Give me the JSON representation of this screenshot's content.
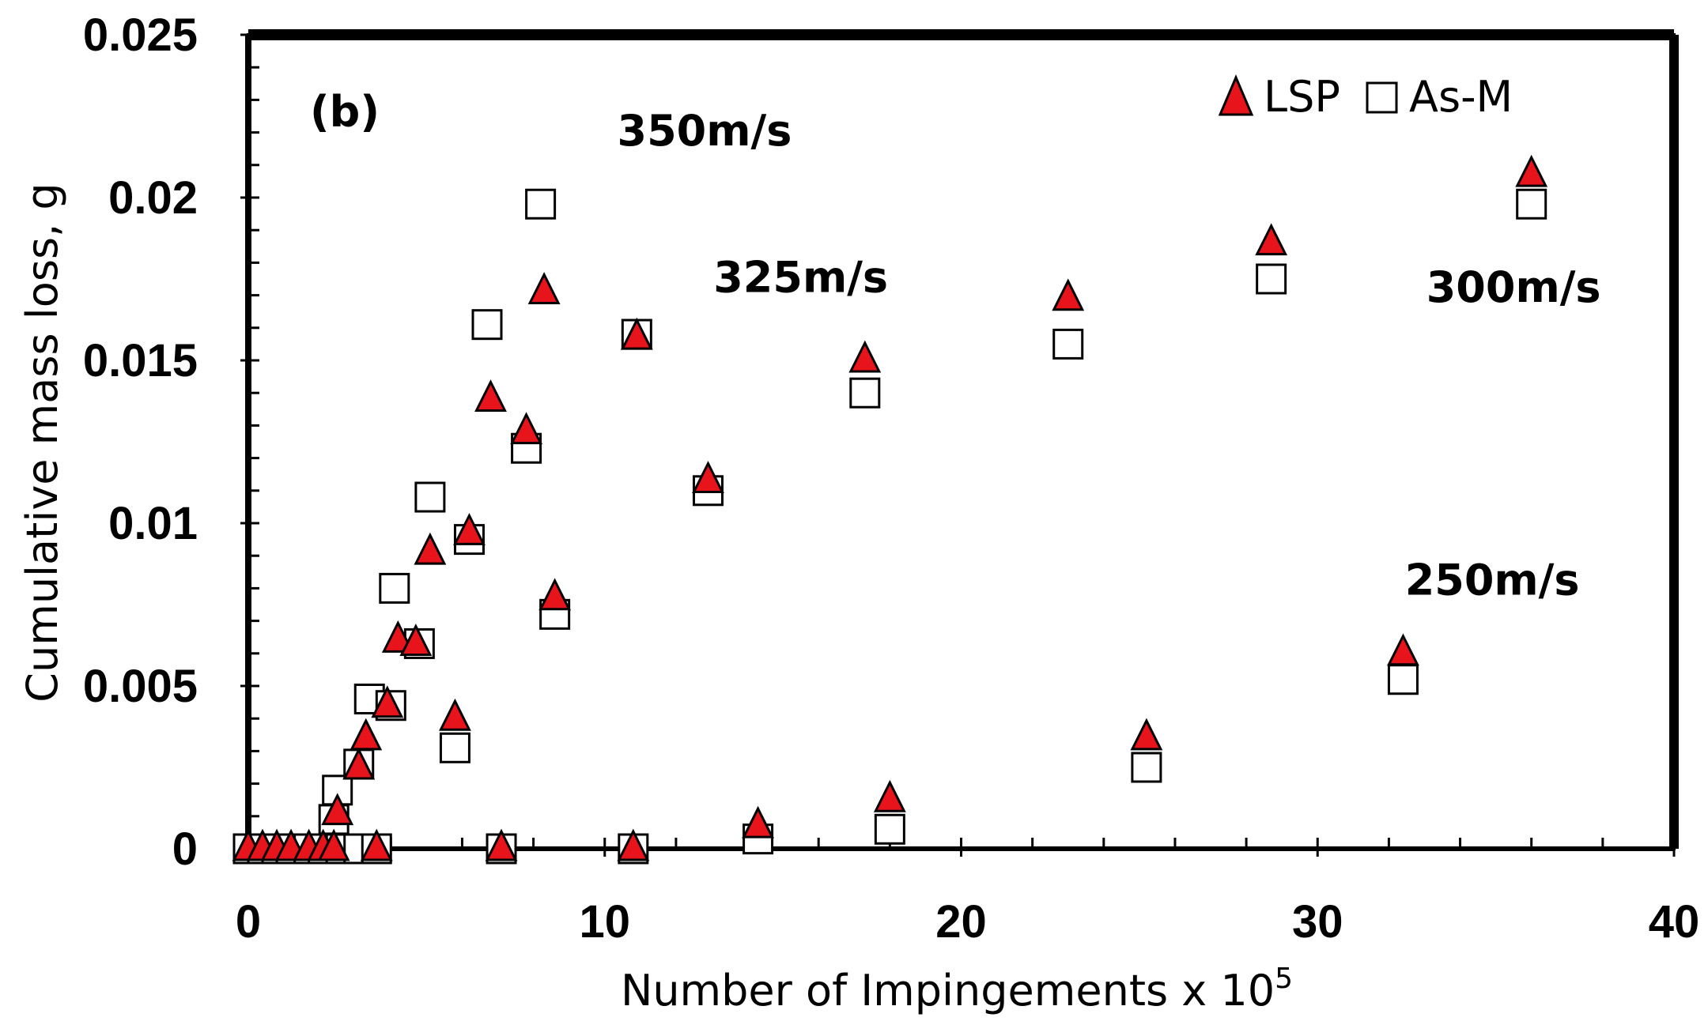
{
  "chart_data": {
    "type": "scatter",
    "panel_label": "(b)",
    "xlabel": "Number of Impingements x 10",
    "xlabel_superscript": "5",
    "ylabel": "Cumulative mass loss, g",
    "xlim": [
      0,
      40
    ],
    "ylim": [
      0,
      0.025
    ],
    "x_ticks": [
      0,
      10,
      20,
      30,
      40
    ],
    "x_tick_labels": [
      "0",
      "10",
      "20",
      "30",
      "40"
    ],
    "y_ticks": [
      0,
      0.005,
      0.01,
      0.015,
      0.02,
      0.025
    ],
    "y_tick_labels": [
      "0",
      "0.005",
      "0.01",
      "0.015",
      "0.02",
      "0.025"
    ],
    "grid": false,
    "legend_position": "top-right",
    "annotations": [
      {
        "text": "350m/s",
        "x": 12.8,
        "y": 0.0216
      },
      {
        "text": "325m/s",
        "x": 15.5,
        "y": 0.0171
      },
      {
        "text": "300m/s",
        "x": 35.5,
        "y": 0.0168
      },
      {
        "text": "250m/s",
        "x": 34.9,
        "y": 0.0078
      }
    ],
    "series": [
      {
        "name": "LSP",
        "marker": "triangle",
        "color": "#e8141b",
        "points": [
          [
            0,
            0
          ],
          [
            0.4,
            0
          ],
          [
            0.8,
            0
          ],
          [
            1.2,
            0
          ],
          [
            1.7,
            0
          ],
          [
            2.1,
            0
          ],
          [
            2.4,
            0
          ],
          [
            2.5,
            0.0011
          ],
          [
            3.1,
            0.0025
          ],
          [
            3.3,
            0.0034
          ],
          [
            3.6,
            0
          ],
          [
            3.9,
            0.0044
          ],
          [
            4.2,
            0.0064
          ],
          [
            4.7,
            0.0063
          ],
          [
            5.1,
            0.0091
          ],
          [
            5.8,
            0.004
          ],
          [
            6.2,
            0.0097
          ],
          [
            6.8,
            0.0138
          ],
          [
            7.1,
            0
          ],
          [
            7.8,
            0.0128
          ],
          [
            8.3,
            0.0171
          ],
          [
            8.6,
            0.0077
          ],
          [
            10.8,
            0
          ],
          [
            10.9,
            0.0157
          ],
          [
            12.9,
            0.0113
          ],
          [
            14.3,
            0.0007
          ],
          [
            17.3,
            0.015
          ],
          [
            18.0,
            0.0015
          ],
          [
            23.0,
            0.0169
          ],
          [
            25.2,
            0.0034
          ],
          [
            28.7,
            0.0186
          ],
          [
            32.4,
            0.006
          ],
          [
            36.0,
            0.0207
          ]
        ]
      },
      {
        "name": "As-M",
        "marker": "square",
        "color": "#ffffff",
        "points": [
          [
            0,
            0
          ],
          [
            0.4,
            0
          ],
          [
            0.8,
            0
          ],
          [
            1.2,
            0
          ],
          [
            1.7,
            0
          ],
          [
            2.1,
            0
          ],
          [
            2.4,
            0.0009
          ],
          [
            2.5,
            0.0018
          ],
          [
            2.6,
            0
          ],
          [
            3.1,
            0.0026
          ],
          [
            3.1,
            0
          ],
          [
            3.4,
            0.0046
          ],
          [
            3.6,
            0
          ],
          [
            4.0,
            0.0044
          ],
          [
            4.1,
            0.008
          ],
          [
            4.8,
            0.0063
          ],
          [
            5.1,
            0.0108
          ],
          [
            5.8,
            0.0031
          ],
          [
            6.2,
            0.0095
          ],
          [
            6.7,
            0.0161
          ],
          [
            7.1,
            0
          ],
          [
            7.8,
            0.0123
          ],
          [
            8.2,
            0.0198
          ],
          [
            8.6,
            0.0072
          ],
          [
            10.8,
            0
          ],
          [
            10.9,
            0.0158
          ],
          [
            12.9,
            0.011
          ],
          [
            14.3,
            0.0003
          ],
          [
            17.3,
            0.014
          ],
          [
            18.0,
            0.0006
          ],
          [
            23.0,
            0.0155
          ],
          [
            25.2,
            0.0025
          ],
          [
            28.7,
            0.0175
          ],
          [
            32.4,
            0.0052
          ],
          [
            36.0,
            0.0198
          ]
        ]
      }
    ]
  }
}
